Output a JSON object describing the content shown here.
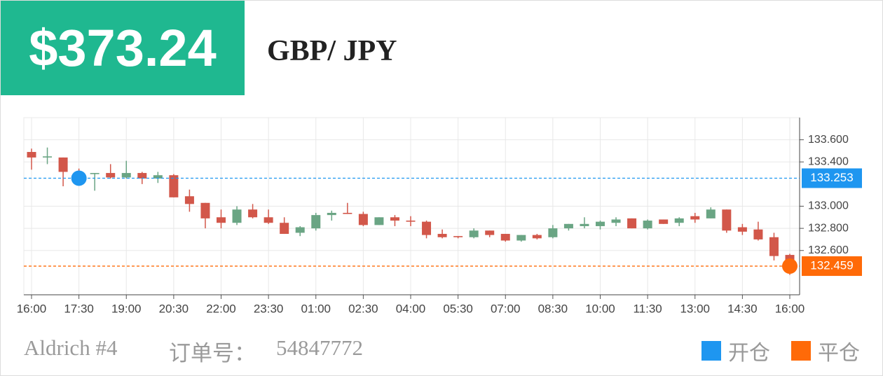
{
  "header": {
    "price": "$373.24",
    "pair": "GBP/ JPY"
  },
  "footer": {
    "name": "Aldrich #4",
    "order_label": "订单号：",
    "order_number": "54847772"
  },
  "chart_data": {
    "type": "candlestick",
    "categories": [
      "16:00",
      null,
      null,
      "17:30",
      null,
      null,
      "19:00",
      null,
      null,
      "20:30",
      null,
      null,
      "22:00",
      null,
      null,
      "23:30",
      null,
      null,
      "01:00",
      null,
      null,
      "02:30",
      null,
      null,
      "04:00",
      null,
      null,
      "05:30",
      null,
      null,
      "07:00",
      null,
      null,
      "08:30",
      null,
      null,
      "10:00",
      null,
      null,
      "11:30",
      null,
      null,
      "13:00",
      null,
      null,
      "14:30",
      null,
      null,
      "16:00"
    ],
    "open": [
      133.49,
      133.44,
      133.44,
      133.28,
      133.29,
      133.3,
      133.26,
      133.3,
      133.25,
      133.28,
      133.09,
      133.03,
      132.9,
      132.85,
      132.97,
      132.9,
      132.85,
      132.76,
      132.8,
      132.92,
      132.94,
      132.93,
      132.83,
      132.9,
      132.87,
      132.86,
      132.75,
      132.73,
      132.72,
      132.78,
      132.75,
      132.69,
      132.74,
      132.72,
      132.8,
      132.82,
      132.82,
      132.85,
      132.89,
      132.8,
      132.88,
      132.85,
      132.91,
      132.89,
      132.97,
      132.81,
      132.79,
      132.72,
      132.56
    ],
    "high": [
      133.52,
      133.53,
      133.44,
      133.34,
      133.3,
      133.38,
      133.41,
      133.31,
      133.31,
      133.29,
      133.15,
      133.03,
      132.97,
      133.0,
      133.02,
      132.97,
      132.9,
      132.82,
      132.94,
      132.96,
      133.03,
      132.95,
      132.9,
      132.92,
      132.91,
      132.87,
      132.79,
      132.73,
      132.8,
      132.78,
      132.75,
      132.74,
      132.75,
      132.83,
      132.84,
      132.9,
      132.87,
      132.9,
      132.89,
      132.88,
      132.88,
      132.9,
      132.94,
      132.99,
      132.97,
      132.84,
      132.86,
      132.76,
      132.57
    ],
    "low": [
      133.33,
      133.38,
      133.18,
      133.19,
      133.14,
      133.25,
      133.25,
      133.2,
      133.21,
      133.08,
      132.95,
      132.8,
      132.8,
      132.83,
      132.89,
      132.84,
      132.75,
      132.73,
      132.78,
      132.87,
      132.93,
      132.82,
      132.83,
      132.82,
      132.82,
      132.71,
      132.71,
      132.71,
      132.71,
      132.72,
      132.68,
      132.68,
      132.7,
      132.71,
      132.78,
      132.8,
      132.79,
      132.82,
      132.8,
      132.79,
      132.84,
      132.82,
      132.85,
      132.89,
      132.76,
      132.74,
      132.69,
      132.51,
      132.38
    ],
    "close": [
      133.44,
      133.45,
      133.31,
      133.25,
      133.3,
      133.26,
      133.3,
      133.25,
      133.28,
      133.08,
      133.02,
      132.89,
      132.85,
      132.97,
      132.9,
      132.85,
      132.75,
      132.81,
      132.92,
      132.94,
      132.93,
      132.83,
      132.9,
      132.87,
      132.86,
      132.74,
      132.72,
      132.72,
      132.78,
      132.74,
      132.69,
      132.74,
      132.71,
      132.8,
      132.84,
      132.84,
      132.86,
      132.88,
      132.8,
      132.87,
      132.84,
      132.89,
      132.88,
      132.97,
      132.78,
      132.77,
      132.7,
      132.55,
      132.46
    ],
    "up_color": "#6aa584",
    "down_color": "#d2574a",
    "ylim": [
      132.2,
      133.8
    ],
    "yticks": [
      {
        "value": 132.6,
        "label": "132.600"
      },
      {
        "value": 132.8,
        "label": "132.800"
      },
      {
        "value": 133.0,
        "label": "133.000"
      },
      {
        "value": 133.4,
        "label": "133.400"
      },
      {
        "value": 133.6,
        "label": "133.600"
      }
    ],
    "grid": true,
    "markers": [
      {
        "name": "开仓",
        "value": 133.253,
        "index": 3,
        "color": "#1e96f0"
      },
      {
        "name": "平仓",
        "value": 132.459,
        "index": 48,
        "color": "#ff6a08"
      }
    ]
  }
}
